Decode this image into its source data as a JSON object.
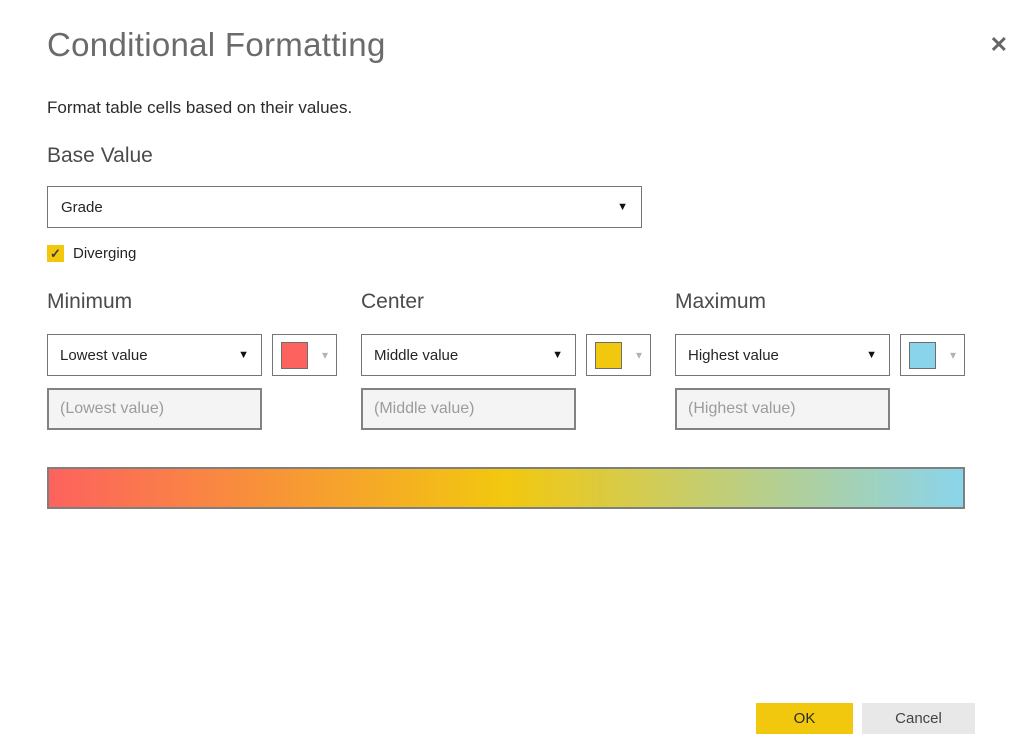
{
  "dialog": {
    "title": "Conditional Formatting",
    "subtitle": "Format table cells based on their values."
  },
  "icons": {
    "close": "✕",
    "caret_down": "▼",
    "chevron_down": "▾",
    "check": "✓"
  },
  "base_value": {
    "label": "Base Value",
    "selected_value": "Grade"
  },
  "diverging": {
    "label": "Diverging",
    "checked": true
  },
  "sections": [
    {
      "heading": "Minimum",
      "dropdown_value": "Lowest value",
      "color": "#FD625E",
      "placeholder": "(Lowest value)",
      "input_value": ""
    },
    {
      "heading": "Center",
      "dropdown_value": "Middle value",
      "color": "#F2C80F",
      "placeholder": "(Middle value)",
      "input_value": ""
    },
    {
      "heading": "Maximum",
      "dropdown_value": "Highest value",
      "color": "#8AD4EB",
      "placeholder": "(Highest value)",
      "input_value": ""
    }
  ],
  "gradient": {
    "stops": [
      "#FD625E",
      "#F2C80F",
      "#8AD4EB"
    ]
  },
  "footer": {
    "ok_label": "OK",
    "cancel_label": "Cancel"
  },
  "colors": {
    "accent": "#F2C80F",
    "min": "#FD625E",
    "center": "#F2C80F",
    "max": "#8AD4EB"
  }
}
